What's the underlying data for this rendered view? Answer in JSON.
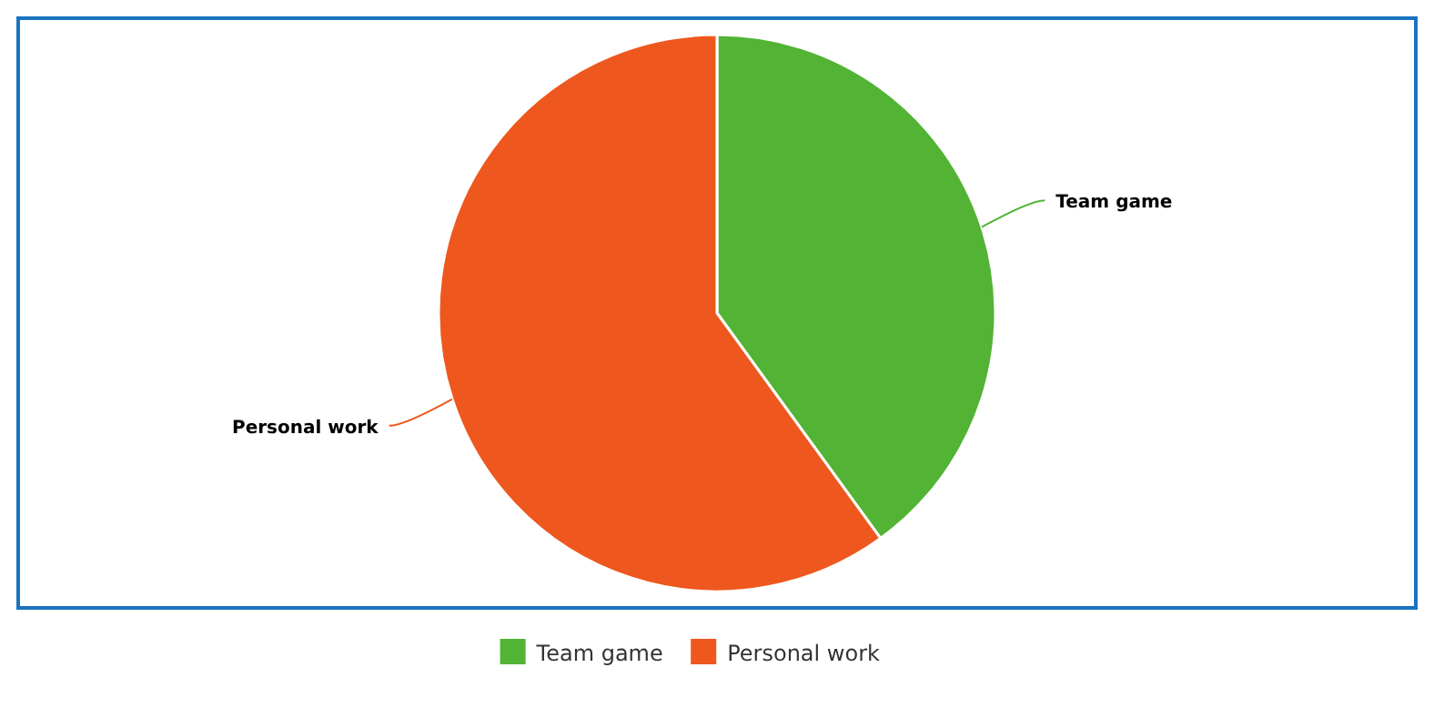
{
  "chart_data": {
    "type": "pie",
    "categories": [
      "Team game",
      "Personal work"
    ],
    "values": [
      40,
      60
    ],
    "colors": [
      "#52b334",
      "#ee571d"
    ],
    "legend": "bottom"
  }
}
